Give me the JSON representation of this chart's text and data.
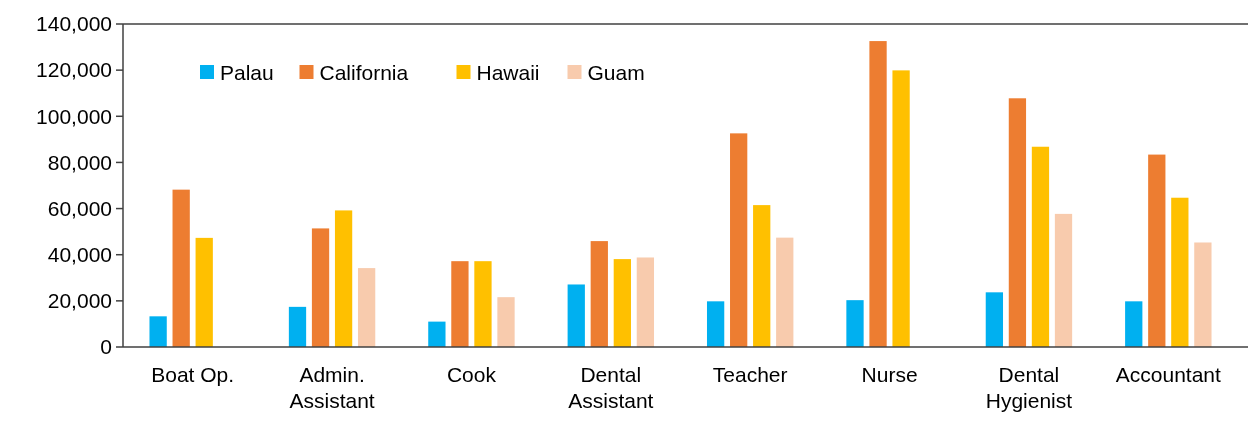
{
  "chart_data": {
    "type": "bar",
    "categories": [
      "Boat Op.",
      "Admin. Assistant",
      "Cook",
      "Dental Assistant",
      "Teacher",
      "Nurse",
      "Dental Hygienist",
      "Accountant"
    ],
    "series": [
      {
        "name": "Palau",
        "color": "#00b0f0",
        "values": [
          13300,
          17400,
          11000,
          27100,
          19800,
          20300,
          23700,
          19800
        ]
      },
      {
        "name": "California",
        "color": "#ed7d31",
        "values": [
          68200,
          51400,
          37200,
          45900,
          92600,
          132600,
          107800,
          83400
        ]
      },
      {
        "name": "Hawaii",
        "color": "#ffc000",
        "values": [
          47300,
          59200,
          37200,
          38100,
          61500,
          119900,
          86800,
          64700
        ]
      },
      {
        "name": "Guam",
        "color": "#f8cbad",
        "values": [
          null,
          34200,
          21600,
          38800,
          47400,
          null,
          57700,
          45300
        ]
      }
    ],
    "ylim": [
      0,
      140000
    ],
    "yticks": [
      {
        "value": 0,
        "label": "0"
      },
      {
        "value": 20000,
        "label": "20,000"
      },
      {
        "value": 40000,
        "label": "40,000"
      },
      {
        "value": 60000,
        "label": "60,000"
      },
      {
        "value": 80000,
        "label": "80,000"
      },
      {
        "value": 100000,
        "label": "100,000"
      },
      {
        "value": 120000,
        "label": "120,000"
      },
      {
        "value": 140000,
        "label": "140,000"
      }
    ],
    "legend": "top left"
  }
}
